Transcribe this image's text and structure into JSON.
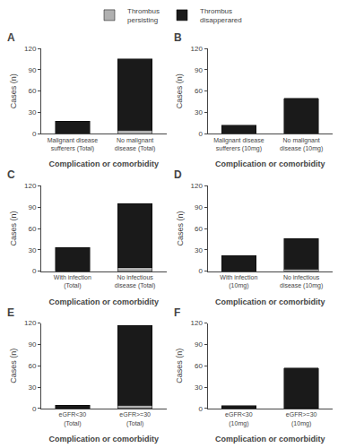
{
  "chart_data": [
    {
      "type": "bar",
      "title": "A",
      "categories": [
        "Malignant disease\nsufferers (Total)",
        "No malignant\ndisease (Total)"
      ],
      "series": [
        {
          "name": "Thrombus\npersisting",
          "color": "#b0b0b0",
          "values": [
            0,
            5
          ]
        },
        {
          "name": "Thrombus\ndisapperared",
          "color": "#1a1a1a",
          "values": [
            18,
            100
          ]
        }
      ],
      "xlabel": "Complication or comorbidity",
      "ylabel": "Cases (n)",
      "ylim": [
        0,
        120
      ],
      "yticks": [
        0,
        30,
        60,
        90,
        120
      ],
      "stacked": true,
      "grid": false
    },
    {
      "type": "bar",
      "title": "B",
      "categories": [
        "Malignant disease\nsufferers (10mg)",
        "No malignant\ndisease (10mg)"
      ],
      "series": [
        {
          "name": "Thrombus\npersisting",
          "color": "#b0b0b0",
          "values": [
            0,
            0
          ]
        },
        {
          "name": "Thrombus\ndisapperared",
          "color": "#1a1a1a",
          "values": [
            12,
            50
          ]
        }
      ],
      "xlabel": "Complication or comorbidity",
      "ylabel": "Cases (n)",
      "ylim": [
        0,
        120
      ],
      "yticks": [
        0,
        30,
        60,
        90,
        120
      ],
      "stacked": true,
      "grid": false
    },
    {
      "type": "bar",
      "title": "C",
      "categories": [
        "With infection\n(Total)",
        "No infectious\ndisease (Total)"
      ],
      "series": [
        {
          "name": "Thrombus\npersisting",
          "color": "#b0b0b0",
          "values": [
            0,
            5
          ]
        },
        {
          "name": "Thrombus\ndisapperared",
          "color": "#1a1a1a",
          "values": [
            33,
            90
          ]
        }
      ],
      "xlabel": "Complication or comorbidity",
      "ylabel": "Cases (n)",
      "ylim": [
        0,
        120
      ],
      "yticks": [
        0,
        30,
        60,
        90,
        120
      ],
      "stacked": true,
      "grid": false
    },
    {
      "type": "bar",
      "title": "D",
      "categories": [
        "With infection\n(10mg)",
        "No infectious\ndisease (10mg)"
      ],
      "series": [
        {
          "name": "Thrombus\npersisting",
          "color": "#b0b0b0",
          "values": [
            0,
            3
          ]
        },
        {
          "name": "Thrombus\ndisapperared",
          "color": "#1a1a1a",
          "values": [
            22,
            43
          ]
        }
      ],
      "xlabel": "Complication or comorbidity",
      "ylabel": "Cases (n)",
      "ylim": [
        0,
        120
      ],
      "yticks": [
        0,
        30,
        60,
        90,
        120
      ],
      "stacked": true,
      "grid": false
    },
    {
      "type": "bar",
      "title": "E",
      "categories": [
        "eGFR<30\n(Total)",
        "eGFR>=30\n(Total)"
      ],
      "series": [
        {
          "name": "Thrombus\npersisting",
          "color": "#b0b0b0",
          "values": [
            0,
            5
          ]
        },
        {
          "name": "Thrombus\ndisapperared",
          "color": "#1a1a1a",
          "values": [
            5,
            112
          ]
        }
      ],
      "xlabel": "Complication or comorbidity",
      "ylabel": "Cases (n)",
      "ylim": [
        0,
        120
      ],
      "yticks": [
        0,
        30,
        60,
        90,
        120
      ],
      "stacked": true,
      "grid": false
    },
    {
      "type": "bar",
      "title": "F",
      "categories": [
        "eGFR<30\n(10mg)",
        "eGFR>=30\n(10mg)"
      ],
      "series": [
        {
          "name": "Thrombus\npersisting",
          "color": "#b0b0b0",
          "values": [
            0,
            0
          ]
        },
        {
          "name": "Thrombus\ndisapperared",
          "color": "#1a1a1a",
          "values": [
            4,
            57
          ]
        }
      ],
      "xlabel": "Complication or comorbidity",
      "ylabel": "Cases (n)",
      "ylim": [
        0,
        120
      ],
      "yticks": [
        0,
        30,
        60,
        90,
        120
      ],
      "stacked": true,
      "grid": false
    }
  ]
}
